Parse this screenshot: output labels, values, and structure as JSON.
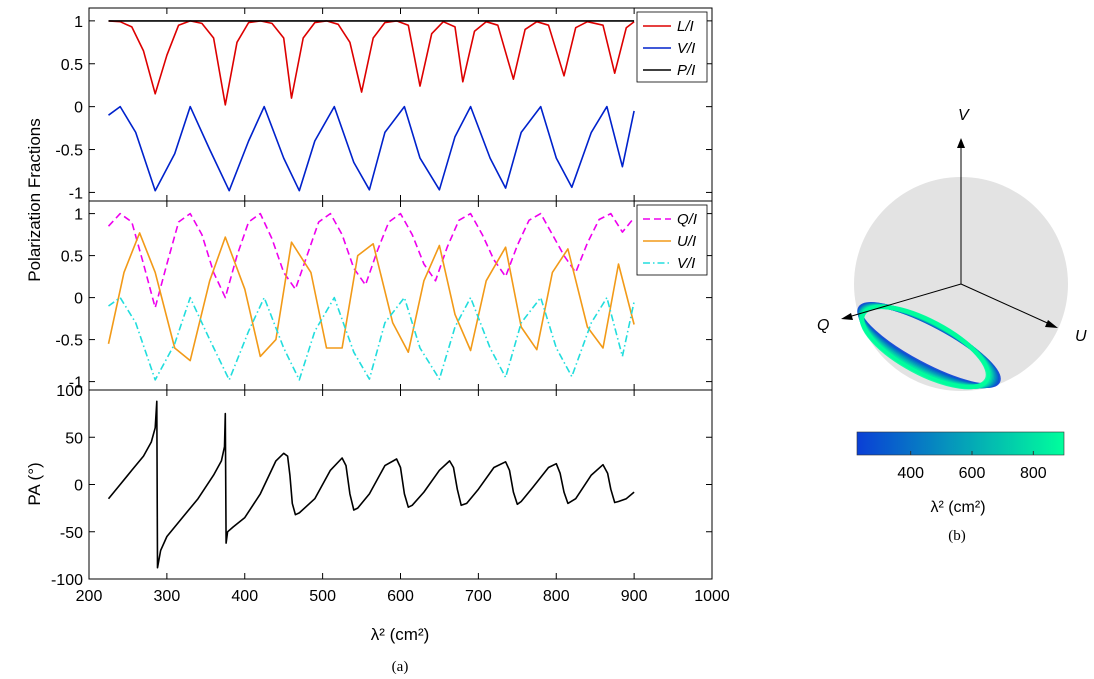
{
  "captions": {
    "a": "(a)",
    "b": "(b)"
  },
  "chart_data": [
    {
      "type": "line",
      "panel": "top",
      "xlim": [
        200,
        1000
      ],
      "ylim": [
        -1.1,
        1.15
      ],
      "yticks": [
        1,
        0.5,
        0,
        -0.5,
        -1
      ],
      "ytick_labels": [
        "1",
        "0.5",
        "0",
        "-0.5",
        "-1"
      ],
      "shared_ylabel": "Polarization Fractions",
      "legend_position": "top-right",
      "series": [
        {
          "name": "L/I",
          "color": "#dd0000",
          "style": "solid",
          "x": [
            225,
            240,
            255,
            270,
            285,
            300,
            315,
            330,
            345,
            360,
            375,
            390,
            405,
            420,
            435,
            450,
            460,
            475,
            490,
            505,
            520,
            535,
            550,
            565,
            580,
            595,
            610,
            625,
            640,
            655,
            670,
            680,
            695,
            710,
            725,
            745,
            760,
            775,
            790,
            810,
            825,
            840,
            860,
            875,
            890,
            900
          ],
          "y": [
            1,
            0.99,
            0.93,
            0.65,
            0.15,
            0.6,
            0.95,
            1,
            0.97,
            0.8,
            0.02,
            0.75,
            0.98,
            1,
            0.97,
            0.8,
            0.1,
            0.8,
            0.98,
            1,
            0.96,
            0.75,
            0.17,
            0.8,
            0.98,
            1,
            0.95,
            0.24,
            0.85,
            0.99,
            0.93,
            0.29,
            0.88,
            0.99,
            0.95,
            0.32,
            0.9,
            0.99,
            0.95,
            0.36,
            0.92,
            0.99,
            0.95,
            0.39,
            0.92,
            0.99
          ]
        },
        {
          "name": "V/I",
          "color": "#0022cc",
          "style": "solid",
          "x": [
            225,
            240,
            260,
            285,
            310,
            330,
            355,
            380,
            405,
            425,
            450,
            470,
            490,
            515,
            540,
            560,
            580,
            605,
            625,
            650,
            670,
            690,
            715,
            735,
            755,
            780,
            800,
            820,
            845,
            865,
            885,
            900
          ],
          "y": [
            -0.1,
            0,
            -0.3,
            -0.98,
            -0.55,
            0,
            -0.5,
            -0.98,
            -0.4,
            0,
            -0.6,
            -0.98,
            -0.4,
            0,
            -0.65,
            -0.97,
            -0.3,
            0,
            -0.6,
            -0.97,
            -0.35,
            0,
            -0.6,
            -0.95,
            -0.3,
            0,
            -0.6,
            -0.94,
            -0.3,
            0,
            -0.7,
            -0.05
          ]
        },
        {
          "name": "P/I",
          "color": "#000000",
          "style": "solid",
          "x": [
            225,
            900
          ],
          "y": [
            1,
            1
          ]
        }
      ]
    },
    {
      "type": "line",
      "panel": "middle",
      "xlim": [
        200,
        1000
      ],
      "ylim": [
        -1.1,
        1.15
      ],
      "yticks": [
        1,
        0.5,
        0,
        -0.5,
        -1
      ],
      "ytick_labels": [
        "1",
        "0.5",
        "0",
        "-0.5",
        "-1"
      ],
      "legend_position": "top-right",
      "series": [
        {
          "name": "Q/I",
          "color": "#ee00ee",
          "style": "dashed",
          "x": [
            225,
            240,
            255,
            270,
            285,
            300,
            315,
            330,
            345,
            360,
            375,
            390,
            405,
            420,
            435,
            450,
            465,
            480,
            495,
            510,
            525,
            540,
            555,
            570,
            585,
            600,
            615,
            630,
            645,
            660,
            675,
            690,
            705,
            720,
            735,
            750,
            765,
            780,
            795,
            810,
            825,
            840,
            855,
            870,
            885,
            900
          ],
          "y": [
            0.85,
            1,
            0.9,
            0.4,
            -0.12,
            0.4,
            0.9,
            1,
            0.75,
            0.3,
            0,
            0.5,
            0.9,
            1,
            0.7,
            0.3,
            0.1,
            0.5,
            0.9,
            1,
            0.75,
            0.35,
            0.15,
            0.55,
            0.9,
            1,
            0.75,
            0.4,
            0.2,
            0.6,
            0.92,
            1,
            0.75,
            0.45,
            0.25,
            0.62,
            0.92,
            1,
            0.75,
            0.5,
            0.3,
            0.65,
            0.93,
            1,
            0.78,
            0.95
          ]
        },
        {
          "name": "U/I",
          "color": "#f29a18",
          "style": "solid",
          "x": [
            225,
            245,
            265,
            285,
            310,
            330,
            355,
            375,
            400,
            420,
            440,
            460,
            485,
            505,
            525,
            545,
            565,
            590,
            610,
            630,
            650,
            670,
            690,
            710,
            735,
            755,
            775,
            795,
            815,
            840,
            860,
            880,
            900
          ],
          "y": [
            -0.55,
            0.3,
            0.77,
            0.3,
            -0.6,
            -0.75,
            0.2,
            0.72,
            0.1,
            -0.7,
            -0.5,
            0.66,
            0.3,
            -0.6,
            -0.6,
            0.5,
            0.64,
            -0.3,
            -0.65,
            0.2,
            0.62,
            -0.2,
            -0.63,
            0.2,
            0.6,
            -0.35,
            -0.62,
            0.3,
            0.58,
            -0.35,
            -0.6,
            0.4,
            -0.32
          ]
        },
        {
          "name": "V/I",
          "color": "#22dddd",
          "style": "dashdot",
          "x": [
            225,
            240,
            260,
            285,
            310,
            330,
            355,
            380,
            405,
            425,
            450,
            470,
            490,
            515,
            540,
            560,
            580,
            605,
            625,
            650,
            670,
            690,
            715,
            735,
            755,
            780,
            800,
            820,
            845,
            865,
            885,
            900
          ],
          "y": [
            -0.1,
            0,
            -0.3,
            -0.98,
            -0.55,
            0,
            -0.5,
            -0.98,
            -0.4,
            0,
            -0.6,
            -0.98,
            -0.4,
            0,
            -0.65,
            -0.97,
            -0.3,
            0,
            -0.6,
            -0.97,
            -0.35,
            0,
            -0.6,
            -0.95,
            -0.3,
            0,
            -0.6,
            -0.94,
            -0.3,
            0,
            -0.7,
            -0.05
          ]
        }
      ]
    },
    {
      "type": "line",
      "panel": "bottom",
      "xlim": [
        200,
        1000
      ],
      "ylim": [
        -100,
        100
      ],
      "yticks": [
        100,
        50,
        0,
        -50,
        -100
      ],
      "ytick_labels": [
        "100",
        "50",
        "0",
        "-50",
        "-100"
      ],
      "xticks": [
        200,
        300,
        400,
        500,
        600,
        700,
        800,
        900,
        1000
      ],
      "xtick_labels": [
        "200",
        "300",
        "400",
        "500",
        "600",
        "700",
        "800",
        "900",
        "1000"
      ],
      "ylabel": "PA (°)",
      "xlabel": "λ² (cm²)",
      "series": [
        {
          "name": "",
          "color": "#000000",
          "style": "solid",
          "x": [
            225,
            240,
            255,
            270,
            280,
            285,
            287,
            288,
            292,
            300,
            320,
            340,
            360,
            370,
            374,
            375,
            376,
            378,
            385,
            400,
            420,
            440,
            450,
            455,
            458,
            461,
            465,
            470,
            490,
            510,
            525,
            530,
            535,
            540,
            545,
            560,
            580,
            595,
            600,
            605,
            610,
            615,
            630,
            650,
            663,
            668,
            673,
            678,
            685,
            700,
            720,
            735,
            740,
            745,
            750,
            755,
            770,
            790,
            800,
            805,
            810,
            815,
            825,
            845,
            860,
            866,
            870,
            875,
            880,
            890,
            900
          ],
          "y": [
            -15,
            0,
            15,
            30,
            45,
            60,
            88,
            -88,
            -70,
            -55,
            -35,
            -15,
            10,
            25,
            40,
            75,
            -62,
            -50,
            -45,
            -35,
            -10,
            25,
            33,
            30,
            10,
            -20,
            -32,
            -30,
            -15,
            15,
            28,
            20,
            -10,
            -27,
            -25,
            -10,
            20,
            27,
            18,
            -10,
            -24,
            -22,
            -8,
            15,
            25,
            18,
            -5,
            -22,
            -20,
            -5,
            18,
            24,
            15,
            -8,
            -21,
            -18,
            -3,
            18,
            22,
            12,
            -8,
            -20,
            -15,
            10,
            21,
            12,
            -5,
            -19,
            -18,
            -15,
            -8
          ]
        }
      ]
    },
    {
      "type": "scatter",
      "panel": "poincare-sphere",
      "axis_labels": {
        "q": "Q",
        "u": "U",
        "v": "V"
      },
      "colorbar": {
        "label": "λ² (cm²)",
        "range": [
          225,
          900
        ],
        "ticks": [
          400,
          600,
          800
        ],
        "tick_labels": [
          "400",
          "600",
          "800"
        ],
        "color_low": "#0a3fd6",
        "color_high": "#00ff9c"
      }
    }
  ]
}
